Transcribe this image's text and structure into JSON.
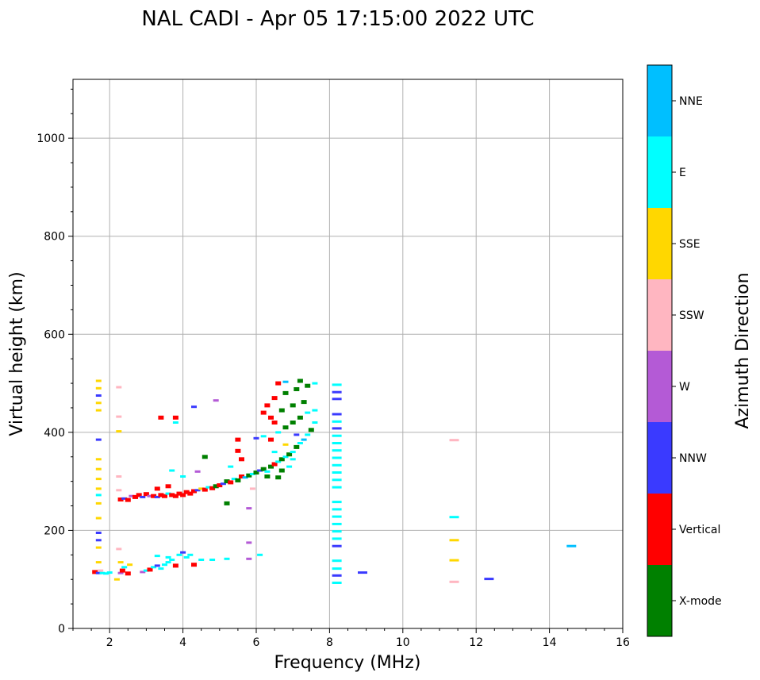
{
  "chart_data": {
    "type": "scatter",
    "title": "NAL CADI - Apr 05 17:15:00 2022 UTC",
    "xlabel": "Frequency (MHz)",
    "ylabel": "Virtual height (km)",
    "xlim": [
      1,
      16
    ],
    "ylim": [
      0,
      1120
    ],
    "xticks": [
      2,
      4,
      6,
      8,
      10,
      12,
      14,
      16
    ],
    "yticks": [
      0,
      200,
      400,
      600,
      800,
      1000
    ],
    "grid": true,
    "colorbar": {
      "label": "Azimuth Direction",
      "categories": [
        {
          "name": "X-mode",
          "color": "#008000"
        },
        {
          "name": "Vertical",
          "color": "#ff0000"
        },
        {
          "name": "NNW",
          "color": "#3a3aff"
        },
        {
          "name": "W",
          "color": "#b45ad6"
        },
        {
          "name": "SSW",
          "color": "#ffb6c1"
        },
        {
          "name": "SSE",
          "color": "#ffd700"
        },
        {
          "name": "E",
          "color": "#00ffff"
        },
        {
          "name": "NNE",
          "color": "#00bfff"
        }
      ]
    },
    "points": [
      {
        "f": 1.6,
        "h": 115,
        "c": "Vertical"
      },
      {
        "f": 1.7,
        "h": 113,
        "c": "NNW"
      },
      {
        "f": 1.8,
        "h": 113,
        "c": "E"
      },
      {
        "f": 1.9,
        "h": 112,
        "c": "E"
      },
      {
        "f": 2.0,
        "h": 114,
        "c": "E"
      },
      {
        "f": 1.75,
        "h": 118,
        "c": "SSW"
      },
      {
        "f": 2.2,
        "h": 100,
        "c": "SSE"
      },
      {
        "f": 2.3,
        "h": 113,
        "c": "W"
      },
      {
        "f": 2.35,
        "h": 118,
        "c": "Vertical"
      },
      {
        "f": 2.4,
        "h": 125,
        "c": "E"
      },
      {
        "f": 2.5,
        "h": 112,
        "c": "Vertical"
      },
      {
        "f": 2.55,
        "h": 130,
        "c": "SSE"
      },
      {
        "f": 2.9,
        "h": 115,
        "c": "W"
      },
      {
        "f": 3.0,
        "h": 118,
        "c": "E"
      },
      {
        "f": 3.1,
        "h": 120,
        "c": "Vertical"
      },
      {
        "f": 3.2,
        "h": 125,
        "c": "E"
      },
      {
        "f": 3.3,
        "h": 128,
        "c": "NNW"
      },
      {
        "f": 3.4,
        "h": 122,
        "c": "E"
      },
      {
        "f": 3.5,
        "h": 130,
        "c": "E"
      },
      {
        "f": 3.6,
        "h": 135,
        "c": "E"
      },
      {
        "f": 3.7,
        "h": 140,
        "c": "E"
      },
      {
        "f": 3.8,
        "h": 128,
        "c": "Vertical"
      },
      {
        "f": 3.9,
        "h": 150,
        "c": "E"
      },
      {
        "f": 4.0,
        "h": 155,
        "c": "NNW"
      },
      {
        "f": 4.1,
        "h": 145,
        "c": "E"
      },
      {
        "f": 4.2,
        "h": 150,
        "c": "E"
      },
      {
        "f": 4.3,
        "h": 130,
        "c": "Vertical"
      },
      {
        "f": 4.5,
        "h": 140,
        "c": "E"
      },
      {
        "f": 4.8,
        "h": 140,
        "c": "E"
      },
      {
        "f": 5.2,
        "h": 142,
        "c": "E"
      },
      {
        "f": 5.8,
        "h": 142,
        "c": "W"
      },
      {
        "f": 6.1,
        "h": 150,
        "c": "E"
      },
      {
        "f": 5.8,
        "h": 175,
        "c": "W"
      },
      {
        "f": 3.3,
        "h": 148,
        "c": "E"
      },
      {
        "f": 3.6,
        "h": 145,
        "c": "E"
      },
      {
        "f": 2.3,
        "h": 135,
        "c": "SSE"
      },
      {
        "f": 2.3,
        "h": 263,
        "c": "Vertical"
      },
      {
        "f": 2.4,
        "h": 265,
        "c": "NNW"
      },
      {
        "f": 2.5,
        "h": 262,
        "c": "Vertical"
      },
      {
        "f": 2.6,
        "h": 270,
        "c": "W"
      },
      {
        "f": 2.7,
        "h": 268,
        "c": "Vertical"
      },
      {
        "f": 2.8,
        "h": 272,
        "c": "Vertical"
      },
      {
        "f": 2.9,
        "h": 268,
        "c": "NNW"
      },
      {
        "f": 3.0,
        "h": 274,
        "c": "Vertical"
      },
      {
        "f": 3.1,
        "h": 270,
        "c": "W"
      },
      {
        "f": 3.2,
        "h": 270,
        "c": "Vertical"
      },
      {
        "f": 3.3,
        "h": 268,
        "c": "NNW"
      },
      {
        "f": 3.4,
        "h": 272,
        "c": "Vertical"
      },
      {
        "f": 3.5,
        "h": 270,
        "c": "Vertical"
      },
      {
        "f": 3.6,
        "h": 275,
        "c": "E"
      },
      {
        "f": 3.7,
        "h": 272,
        "c": "Vertical"
      },
      {
        "f": 3.8,
        "h": 270,
        "c": "Vertical"
      },
      {
        "f": 3.9,
        "h": 275,
        "c": "Vertical"
      },
      {
        "f": 4.0,
        "h": 272,
        "c": "Vertical"
      },
      {
        "f": 4.1,
        "h": 278,
        "c": "Vertical"
      },
      {
        "f": 4.2,
        "h": 275,
        "c": "Vertical"
      },
      {
        "f": 4.3,
        "h": 280,
        "c": "Vertical"
      },
      {
        "f": 4.4,
        "h": 282,
        "c": "NNW"
      },
      {
        "f": 4.5,
        "h": 285,
        "c": "SSE"
      },
      {
        "f": 4.6,
        "h": 283,
        "c": "Vertical"
      },
      {
        "f": 4.7,
        "h": 288,
        "c": "E"
      },
      {
        "f": 4.8,
        "h": 286,
        "c": "Vertical"
      },
      {
        "f": 4.9,
        "h": 290,
        "c": "X-mode"
      },
      {
        "f": 5.0,
        "h": 292,
        "c": "Vertical"
      },
      {
        "f": 5.1,
        "h": 295,
        "c": "NNW"
      },
      {
        "f": 5.2,
        "h": 300,
        "c": "X-mode"
      },
      {
        "f": 5.3,
        "h": 298,
        "c": "Vertical"
      },
      {
        "f": 5.4,
        "h": 305,
        "c": "E"
      },
      {
        "f": 5.5,
        "h": 302,
        "c": "X-mode"
      },
      {
        "f": 5.6,
        "h": 310,
        "c": "Vertical"
      },
      {
        "f": 5.7,
        "h": 308,
        "c": "NNE"
      },
      {
        "f": 5.8,
        "h": 312,
        "c": "X-mode"
      },
      {
        "f": 5.9,
        "h": 315,
        "c": "E"
      },
      {
        "f": 6.0,
        "h": 318,
        "c": "X-mode"
      },
      {
        "f": 6.1,
        "h": 322,
        "c": "NNW"
      },
      {
        "f": 6.2,
        "h": 325,
        "c": "X-mode"
      },
      {
        "f": 6.3,
        "h": 320,
        "c": "E"
      },
      {
        "f": 6.4,
        "h": 330,
        "c": "X-mode"
      },
      {
        "f": 6.5,
        "h": 335,
        "c": "Vertical"
      },
      {
        "f": 6.6,
        "h": 340,
        "c": "E"
      },
      {
        "f": 6.7,
        "h": 345,
        "c": "X-mode"
      },
      {
        "f": 6.8,
        "h": 350,
        "c": "E"
      },
      {
        "f": 6.9,
        "h": 355,
        "c": "X-mode"
      },
      {
        "f": 7.0,
        "h": 360,
        "c": "E"
      },
      {
        "f": 7.1,
        "h": 370,
        "c": "X-mode"
      },
      {
        "f": 7.2,
        "h": 378,
        "c": "E"
      },
      {
        "f": 7.3,
        "h": 385,
        "c": "NNE"
      },
      {
        "f": 7.4,
        "h": 395,
        "c": "E"
      },
      {
        "f": 7.5,
        "h": 405,
        "c": "X-mode"
      },
      {
        "f": 7.6,
        "h": 420,
        "c": "E"
      },
      {
        "f": 6.3,
        "h": 310,
        "c": "X-mode"
      },
      {
        "f": 6.6,
        "h": 308,
        "c": "X-mode"
      },
      {
        "f": 6.7,
        "h": 322,
        "c": "X-mode"
      },
      {
        "f": 6.9,
        "h": 330,
        "c": "E"
      },
      {
        "f": 7.0,
        "h": 345,
        "c": "E"
      },
      {
        "f": 6.5,
        "h": 360,
        "c": "E"
      },
      {
        "f": 6.8,
        "h": 375,
        "c": "SSE"
      },
      {
        "f": 7.1,
        "h": 395,
        "c": "NNW"
      },
      {
        "f": 6.4,
        "h": 385,
        "c": "Vertical"
      },
      {
        "f": 6.2,
        "h": 392,
        "c": "E"
      },
      {
        "f": 6.0,
        "h": 388,
        "c": "NNW"
      },
      {
        "f": 6.6,
        "h": 400,
        "c": "E"
      },
      {
        "f": 6.8,
        "h": 410,
        "c": "X-mode"
      },
      {
        "f": 7.0,
        "h": 420,
        "c": "X-mode"
      },
      {
        "f": 7.2,
        "h": 430,
        "c": "X-mode"
      },
      {
        "f": 7.4,
        "h": 440,
        "c": "E"
      },
      {
        "f": 7.6,
        "h": 445,
        "c": "E"
      },
      {
        "f": 6.7,
        "h": 445,
        "c": "X-mode"
      },
      {
        "f": 7.0,
        "h": 455,
        "c": "X-mode"
      },
      {
        "f": 7.3,
        "h": 462,
        "c": "X-mode"
      },
      {
        "f": 6.5,
        "h": 470,
        "c": "Vertical"
      },
      {
        "f": 6.8,
        "h": 480,
        "c": "X-mode"
      },
      {
        "f": 7.1,
        "h": 488,
        "c": "X-mode"
      },
      {
        "f": 7.4,
        "h": 495,
        "c": "X-mode"
      },
      {
        "f": 7.6,
        "h": 500,
        "c": "E"
      },
      {
        "f": 6.6,
        "h": 500,
        "c": "Vertical"
      },
      {
        "f": 6.8,
        "h": 503,
        "c": "NNE"
      },
      {
        "f": 7.2,
        "h": 505,
        "c": "X-mode"
      },
      {
        "f": 6.4,
        "h": 430,
        "c": "Vertical"
      },
      {
        "f": 6.2,
        "h": 440,
        "c": "Vertical"
      },
      {
        "f": 6.3,
        "h": 455,
        "c": "Vertical"
      },
      {
        "f": 6.5,
        "h": 420,
        "c": "Vertical"
      },
      {
        "f": 5.6,
        "h": 345,
        "c": "Vertical"
      },
      {
        "f": 5.5,
        "h": 362,
        "c": "Vertical"
      },
      {
        "f": 5.5,
        "h": 385,
        "c": "Vertical"
      },
      {
        "f": 5.3,
        "h": 330,
        "c": "E"
      },
      {
        "f": 5.2,
        "h": 255,
        "c": "X-mode"
      },
      {
        "f": 5.8,
        "h": 245,
        "c": "W"
      },
      {
        "f": 5.9,
        "h": 285,
        "c": "SSW"
      },
      {
        "f": 4.9,
        "h": 465,
        "c": "W"
      },
      {
        "f": 4.3,
        "h": 452,
        "c": "NNW"
      },
      {
        "f": 3.8,
        "h": 430,
        "c": "Vertical"
      },
      {
        "f": 3.8,
        "h": 420,
        "c": "E"
      },
      {
        "f": 3.4,
        "h": 430,
        "c": "Vertical"
      },
      {
        "f": 4.4,
        "h": 320,
        "c": "W"
      },
      {
        "f": 4.6,
        "h": 350,
        "c": "X-mode"
      },
      {
        "f": 4.0,
        "h": 310,
        "c": "E"
      },
      {
        "f": 3.7,
        "h": 322,
        "c": "E"
      },
      {
        "f": 3.3,
        "h": 285,
        "c": "Vertical"
      },
      {
        "f": 3.6,
        "h": 290,
        "c": "Vertical"
      },
      {
        "f": 1.7,
        "h": 505,
        "c": "SSE"
      },
      {
        "f": 1.7,
        "h": 490,
        "c": "SSE"
      },
      {
        "f": 1.7,
        "h": 475,
        "c": "NNW"
      },
      {
        "f": 1.7,
        "h": 460,
        "c": "SSE"
      },
      {
        "f": 1.7,
        "h": 445,
        "c": "SSE"
      },
      {
        "f": 1.7,
        "h": 385,
        "c": "NNW"
      },
      {
        "f": 1.7,
        "h": 345,
        "c": "SSE"
      },
      {
        "f": 1.7,
        "h": 325,
        "c": "SSE"
      },
      {
        "f": 1.7,
        "h": 305,
        "c": "SSE"
      },
      {
        "f": 1.7,
        "h": 285,
        "c": "SSE"
      },
      {
        "f": 1.7,
        "h": 272,
        "c": "E"
      },
      {
        "f": 1.7,
        "h": 255,
        "c": "SSE"
      },
      {
        "f": 1.7,
        "h": 225,
        "c": "SSE"
      },
      {
        "f": 1.7,
        "h": 195,
        "c": "NNW"
      },
      {
        "f": 1.7,
        "h": 180,
        "c": "NNW"
      },
      {
        "f": 1.7,
        "h": 165,
        "c": "SSE"
      },
      {
        "f": 1.7,
        "h": 135,
        "c": "SSE"
      },
      {
        "f": 2.25,
        "h": 492,
        "c": "SSW"
      },
      {
        "f": 2.25,
        "h": 432,
        "c": "SSW"
      },
      {
        "f": 2.25,
        "h": 402,
        "c": "SSE"
      },
      {
        "f": 2.25,
        "h": 310,
        "c": "SSW"
      },
      {
        "f": 2.25,
        "h": 282,
        "c": "SSW"
      },
      {
        "f": 2.25,
        "h": 162,
        "c": "SSW"
      },
      {
        "f": 8.2,
        "h": 497,
        "c": "E"
      },
      {
        "f": 8.2,
        "h": 482,
        "c": "NNW"
      },
      {
        "f": 8.2,
        "h": 468,
        "c": "NNW"
      },
      {
        "f": 8.2,
        "h": 437,
        "c": "NNW"
      },
      {
        "f": 8.2,
        "h": 422,
        "c": "E"
      },
      {
        "f": 8.2,
        "h": 408,
        "c": "NNW"
      },
      {
        "f": 8.2,
        "h": 393,
        "c": "E"
      },
      {
        "f": 8.2,
        "h": 378,
        "c": "E"
      },
      {
        "f": 8.2,
        "h": 363,
        "c": "E"
      },
      {
        "f": 8.2,
        "h": 348,
        "c": "E"
      },
      {
        "f": 8.2,
        "h": 333,
        "c": "E"
      },
      {
        "f": 8.2,
        "h": 318,
        "c": "E"
      },
      {
        "f": 8.2,
        "h": 303,
        "c": "E"
      },
      {
        "f": 8.2,
        "h": 288,
        "c": "E"
      },
      {
        "f": 8.2,
        "h": 258,
        "c": "E"
      },
      {
        "f": 8.2,
        "h": 243,
        "c": "E"
      },
      {
        "f": 8.2,
        "h": 228,
        "c": "E"
      },
      {
        "f": 8.2,
        "h": 213,
        "c": "E"
      },
      {
        "f": 8.2,
        "h": 198,
        "c": "E"
      },
      {
        "f": 8.2,
        "h": 183,
        "c": "E"
      },
      {
        "f": 8.2,
        "h": 168,
        "c": "NNW"
      },
      {
        "f": 8.2,
        "h": 138,
        "c": "E"
      },
      {
        "f": 8.2,
        "h": 122,
        "c": "E"
      },
      {
        "f": 8.2,
        "h": 108,
        "c": "NNW"
      },
      {
        "f": 8.2,
        "h": 93,
        "c": "E"
      },
      {
        "f": 8.9,
        "h": 114,
        "c": "NNW"
      },
      {
        "f": 11.4,
        "h": 384,
        "c": "SSW"
      },
      {
        "f": 11.4,
        "h": 227,
        "c": "E"
      },
      {
        "f": 11.4,
        "h": 180,
        "c": "SSE"
      },
      {
        "f": 11.4,
        "h": 139,
        "c": "SSE"
      },
      {
        "f": 11.4,
        "h": 95,
        "c": "SSW"
      },
      {
        "f": 12.35,
        "h": 101,
        "c": "NNW"
      },
      {
        "f": 14.6,
        "h": 168,
        "c": "NNE"
      }
    ]
  }
}
